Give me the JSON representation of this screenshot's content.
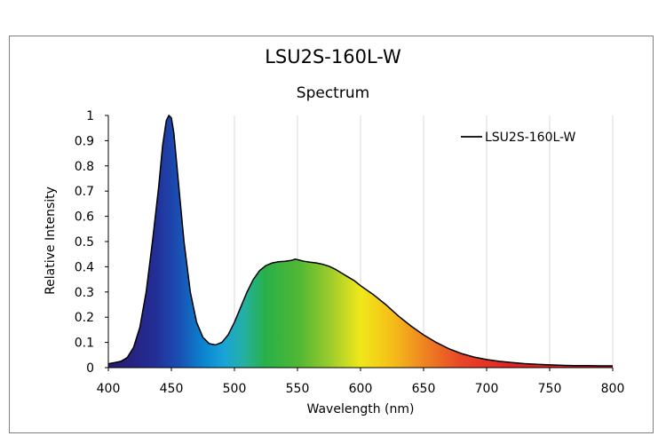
{
  "chart_data": {
    "type": "area",
    "title": "LSU2S-160L-W",
    "subtitle": "Spectrum",
    "xlabel": "Wavelength (nm)",
    "ylabel": "Relative Intensity",
    "xlim": [
      400,
      800
    ],
    "ylim": [
      0,
      1
    ],
    "x_ticks": [
      400,
      450,
      500,
      550,
      600,
      650,
      700,
      750,
      800
    ],
    "y_ticks": [
      0,
      0.1,
      0.2,
      0.3,
      0.4,
      0.5,
      0.6,
      0.7,
      0.8,
      0.9,
      1
    ],
    "y_tick_labels": [
      "0",
      "0.1",
      "0.2",
      "0.3",
      "0.4",
      "0.5",
      "0.6",
      "0.7",
      "0.8",
      "0.9",
      "1"
    ],
    "grid": "vertical",
    "legend_position": "top-right",
    "fill": "visible-spectrum gradient",
    "series": [
      {
        "name": "LSU2S-160L-W",
        "color": "#000000",
        "x": [
          400,
          405,
          410,
          415,
          420,
          425,
          430,
          435,
          440,
          443,
          446,
          448,
          450,
          452,
          454,
          457,
          460,
          465,
          470,
          475,
          480,
          485,
          490,
          495,
          500,
          505,
          510,
          515,
          520,
          525,
          530,
          535,
          540,
          545,
          548,
          550,
          555,
          560,
          565,
          570,
          575,
          580,
          585,
          590,
          595,
          600,
          610,
          620,
          630,
          640,
          650,
          660,
          670,
          680,
          690,
          700,
          710,
          720,
          730,
          740,
          750,
          760,
          770,
          780,
          790,
          800
        ],
        "y": [
          0.015,
          0.02,
          0.025,
          0.04,
          0.08,
          0.16,
          0.3,
          0.5,
          0.72,
          0.88,
          0.98,
          1.0,
          0.99,
          0.93,
          0.82,
          0.66,
          0.5,
          0.3,
          0.18,
          0.12,
          0.095,
          0.09,
          0.1,
          0.13,
          0.18,
          0.24,
          0.3,
          0.35,
          0.385,
          0.405,
          0.415,
          0.42,
          0.422,
          0.425,
          0.43,
          0.428,
          0.422,
          0.418,
          0.415,
          0.41,
          0.402,
          0.39,
          0.375,
          0.36,
          0.345,
          0.325,
          0.29,
          0.25,
          0.205,
          0.165,
          0.13,
          0.1,
          0.075,
          0.056,
          0.042,
          0.032,
          0.025,
          0.02,
          0.016,
          0.013,
          0.011,
          0.009,
          0.008,
          0.008,
          0.007,
          0.007
        ]
      }
    ]
  }
}
